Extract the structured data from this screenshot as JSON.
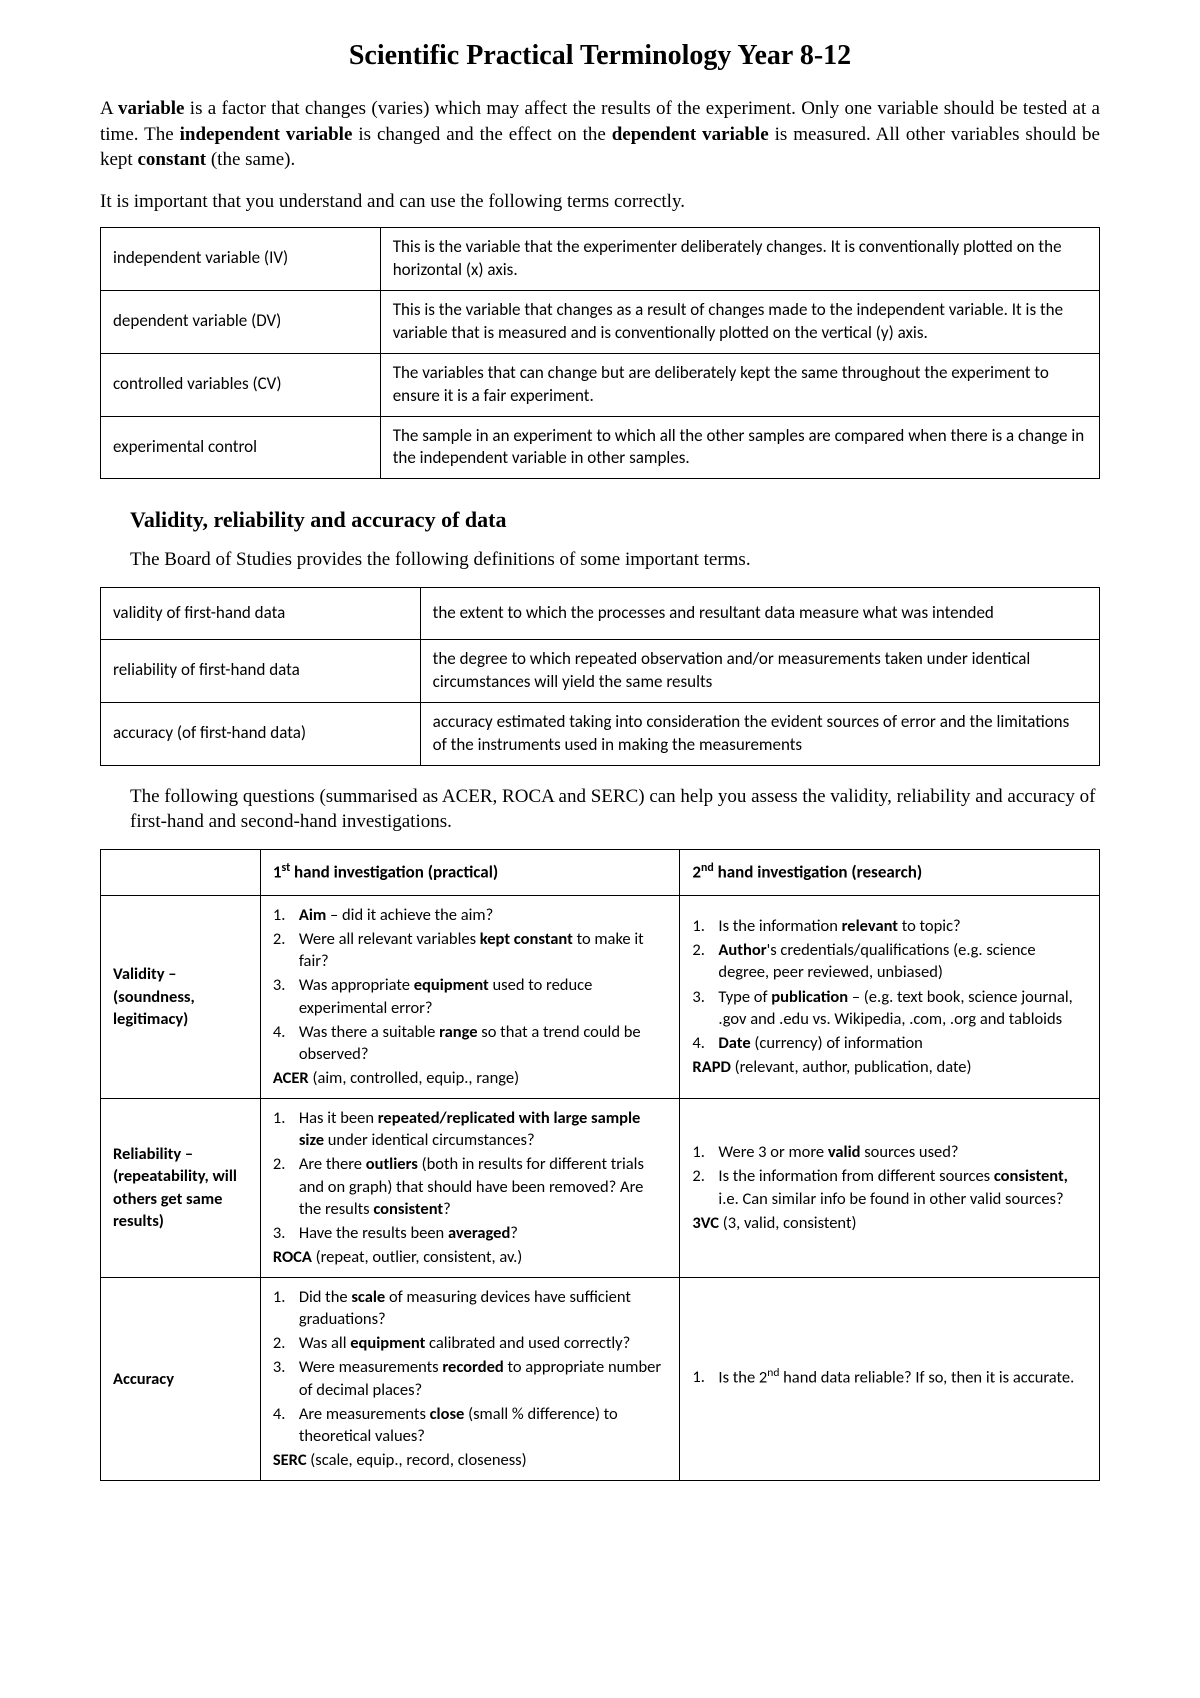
{
  "title": "Scientific Practical Terminology Year 8-12",
  "intro_html": "A <b>variable</b> is a factor that changes (varies) which may affect the results of the experiment. Only one variable should be tested at a time. The <b>independent variable</b> is changed and the effect on the <b>dependent variable</b> is measured. All other variables should be kept <b>constant</b> (the same).",
  "intro2": "It is important that you understand and can use the following terms correctly.",
  "table1": [
    {
      "term": "independent variable (IV)",
      "def": "This is the variable that the experimenter deliberately changes. It is conventionally plotted on the horizontal (x) axis."
    },
    {
      "term": "dependent variable (DV)",
      "def": "This is the variable that changes as a result of changes made to the independent variable. It is the variable that is measured and is conventionally plotted on the vertical (y) axis."
    },
    {
      "term": "controlled variables (CV)",
      "def": "The variables that can change but are deliberately kept the same throughout the experiment to ensure it is a fair experiment."
    },
    {
      "term": "experimental control",
      "def": "The sample in an experiment to which all the other samples are compared when there is a change in the independent variable in other samples."
    }
  ],
  "subhead": "Validity, reliability and accuracy of data",
  "para1": "The Board of Studies provides the following definitions of some important terms.",
  "table2": [
    {
      "term": "validity of first-hand data",
      "def": "the extent to which the processes and resultant data measure what was intended"
    },
    {
      "term": "reliability of first-hand data",
      "def": "the degree to which repeated observation and/or measurements taken under identical circumstances will yield the same results"
    },
    {
      "term": "accuracy (of first-hand data)",
      "def": "accuracy estimated taking into consideration the evident sources of error and the limitations of the instruments used in making the measurements"
    }
  ],
  "para2": "The following questions (summarised as ACER, ROCA and SERC) can help you assess the validity, reliability and accuracy of first-hand and second-hand investigations.",
  "assess": {
    "head_blank": "",
    "head_col1_html": "1<sup>st</sup> hand investigation (practical)",
    "head_col2_html": "2<sup>nd</sup> hand investigation (research)",
    "rows": [
      {
        "label_html": "Validity – (soundness, legitimacy)",
        "first": {
          "items": [
            "<b>Aim</b> – did it achieve the aim?",
            "Were all relevant variables <b>kept constant</b> to make it fair?",
            "Was appropriate <b>equipment</b> used to reduce experimental error?",
            "Was there a suitable <b>range</b> so that a trend could be observed?"
          ],
          "mnemonic_html": "<b>ACER</b> (aim, controlled, equip., range)"
        },
        "second": {
          "items": [
            "Is the information <b>relevant</b> to topic?",
            "<b>Author</b>'s credentials/qualifications (e.g. science degree, peer reviewed, unbiased)",
            "Type of <b>publication</b> – (e.g. text book, science journal, .gov and .edu vs. Wikipedia, .com, .org and tabloids",
            "<b>Date</b> (currency) of information"
          ],
          "mnemonic_html": "<b>RAPD</b> (relevant, author, publication, date)"
        }
      },
      {
        "label_html": "Reliability – (repeatability, will others get same results)",
        "first": {
          "items": [
            "Has it been <b>repeated/replicated with large sample size</b> under identical circumstances?",
            "Are there <b>outliers</b> (both in results for different trials and on graph) that should have been removed? Are the results <b>consistent</b>?",
            "Have the results been <b>averaged</b>?"
          ],
          "mnemonic_html": "<b>ROCA</b> (repeat, outlier, consistent, av.)"
        },
        "second": {
          "items": [
            "Were 3 or more <b>valid</b> sources used?",
            "Is the information from different sources <b>consistent,</b> i.e. Can similar info be found in other valid sources?"
          ],
          "mnemonic_html": "<b>3VC</b> (3, valid, consistent)"
        }
      },
      {
        "label_html": "Accuracy",
        "first": {
          "items": [
            "Did the <b>scale</b> of measuring devices have sufficient graduations?",
            "Was all <b>equipment</b> calibrated and used correctly?",
            "Were measurements <b>recorded</b> to appropriate number of decimal places?",
            "Are measurements <b>close</b> (small % difference) to theoretical values?"
          ],
          "mnemonic_html": "<b>SERC</b> (scale, equip., record, closeness)"
        },
        "second": {
          "items": [
            "Is the 2<sup>nd</sup> hand data reliable? If so, then it is accurate."
          ],
          "mnemonic_html": ""
        }
      }
    ]
  }
}
